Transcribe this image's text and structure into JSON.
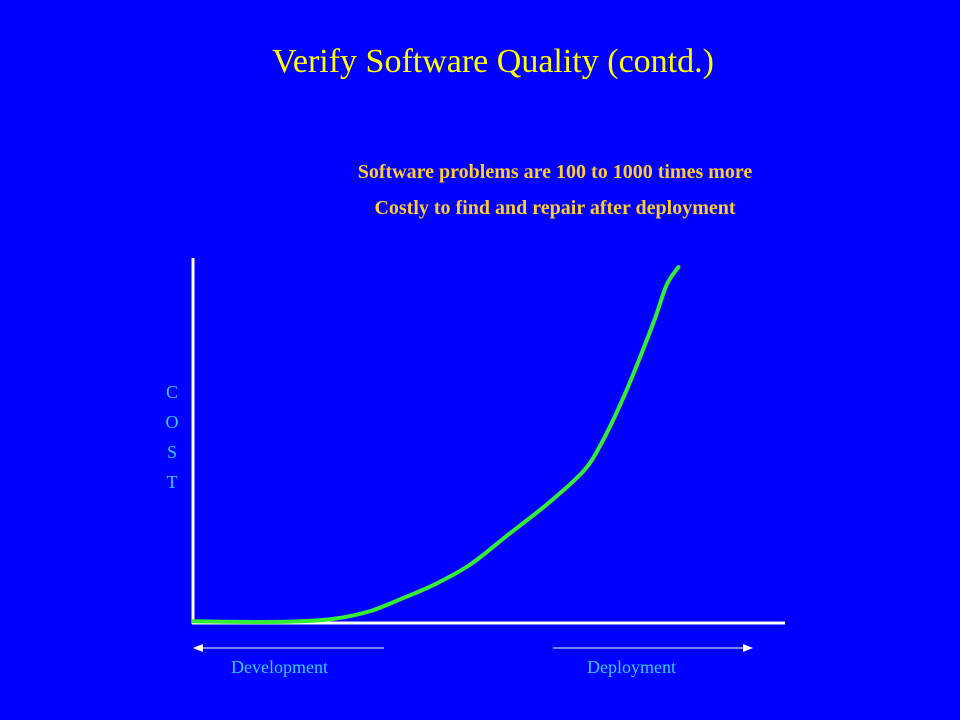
{
  "slide": {
    "title": "Verify Software Quality (contd.)",
    "subtitle_lines": [
      "Software problems are 100 to 1000 times more",
      "Costly to find and repair after deployment"
    ]
  },
  "colors": {
    "background": "#0000FF",
    "title": "#FFFF00",
    "subtitle": "#FFCC33",
    "axis": "#FFFFFF",
    "curve": "#33EE33",
    "labels": "#33CCFF"
  },
  "chart_data": {
    "type": "line",
    "title": "",
    "xlabel": "",
    "ylabel": "COST",
    "ylabel_letters": [
      "C",
      "O",
      "S",
      "T"
    ],
    "phases": [
      {
        "label": "Development",
        "arrow": "left"
      },
      {
        "label": "Deployment",
        "arrow": "right"
      }
    ],
    "x_range": [
      0,
      100
    ],
    "y_range": [
      0,
      100
    ],
    "series": [
      {
        "values": [
          [
            0,
            0.5
          ],
          [
            8,
            0.3
          ],
          [
            17,
            0.4
          ],
          [
            24,
            1.2
          ],
          [
            30,
            3.3
          ],
          [
            35,
            6.5
          ],
          [
            41,
            10.7
          ],
          [
            47,
            16.2
          ],
          [
            53,
            23.9
          ],
          [
            60,
            32.8
          ],
          [
            66,
            41.7
          ],
          [
            69,
            49.3
          ],
          [
            72,
            59.2
          ],
          [
            75,
            70.7
          ],
          [
            78,
            83.3
          ],
          [
            80,
            92.6
          ],
          [
            82,
            97.5
          ]
        ]
      }
    ],
    "grid": false,
    "legend": "none"
  }
}
